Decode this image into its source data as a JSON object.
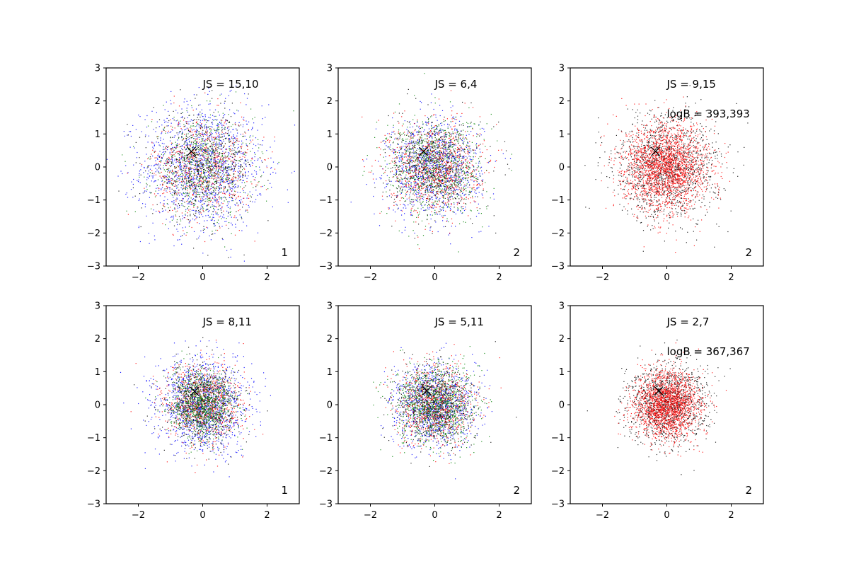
{
  "chart_data": [
    {
      "type": "scatter",
      "row": 1,
      "col": 1,
      "xlim": [
        -3,
        3
      ],
      "ylim": [
        -3,
        3
      ],
      "xticks": [
        -2,
        0,
        2
      ],
      "yticks": [
        -3,
        -2,
        -1,
        0,
        1,
        2,
        3
      ],
      "annotations": [
        "JS = 15,10"
      ],
      "corner_label": "1",
      "marker_x": {
        "x": -0.35,
        "y": 0.47
      },
      "series": [
        {
          "color": "#0000ff",
          "spread": 0.95,
          "points": 1400
        },
        {
          "color": "#ff0000",
          "spread": 0.78,
          "points": 700
        },
        {
          "color": "#008000",
          "spread": 0.78,
          "points": 700
        },
        {
          "color": "#000000",
          "spread": 0.78,
          "points": 600
        }
      ]
    },
    {
      "type": "scatter",
      "row": 1,
      "col": 2,
      "xlim": [
        -3,
        3
      ],
      "ylim": [
        -3,
        3
      ],
      "xticks": [
        -2,
        0,
        2
      ],
      "yticks": [
        -3,
        -2,
        -1,
        0,
        1,
        2,
        3
      ],
      "annotations": [
        "JS = 6,4"
      ],
      "corner_label": "2",
      "marker_x": {
        "x": -0.35,
        "y": 0.47
      },
      "series": [
        {
          "color": "#0000ff",
          "spread": 0.72,
          "points": 1100
        },
        {
          "color": "#ff0000",
          "spread": 0.7,
          "points": 900
        },
        {
          "color": "#008000",
          "spread": 0.75,
          "points": 900
        },
        {
          "color": "#000000",
          "spread": 0.7,
          "points": 600
        }
      ]
    },
    {
      "type": "scatter",
      "row": 1,
      "col": 3,
      "xlim": [
        -3,
        3
      ],
      "ylim": [
        -3,
        3
      ],
      "xticks": [
        -2,
        0,
        2
      ],
      "yticks": [
        -3,
        -2,
        -1,
        0,
        1,
        2,
        3
      ],
      "annotations": [
        "JS = 9,15",
        "logB = 393,393"
      ],
      "corner_label": "2",
      "marker_x": {
        "x": -0.35,
        "y": 0.47
      },
      "series": [
        {
          "color": "#000000",
          "spread": 0.78,
          "points": 1400
        },
        {
          "color": "#ff0000",
          "spread": 0.65,
          "points": 2200
        }
      ]
    },
    {
      "type": "scatter",
      "row": 2,
      "col": 1,
      "xlim": [
        -3,
        3
      ],
      "ylim": [
        -3,
        3
      ],
      "xticks": [
        -2,
        0,
        2
      ],
      "yticks": [
        -3,
        -2,
        -1,
        0,
        1,
        2,
        3
      ],
      "annotations": [
        "JS = 8,11"
      ],
      "corner_label": "1",
      "marker_x": {
        "x": -0.25,
        "y": 0.4
      },
      "series": [
        {
          "color": "#0000ff",
          "spread": 0.7,
          "points": 1300
        },
        {
          "color": "#ff0000",
          "spread": 0.6,
          "points": 800
        },
        {
          "color": "#000000",
          "spread": 0.6,
          "points": 700
        },
        {
          "color": "#008000",
          "spread": 0.5,
          "points": 900
        }
      ]
    },
    {
      "type": "scatter",
      "row": 2,
      "col": 2,
      "xlim": [
        -3,
        3
      ],
      "ylim": [
        -3,
        3
      ],
      "xticks": [
        -2,
        0,
        2
      ],
      "yticks": [
        -3,
        -2,
        -1,
        0,
        1,
        2,
        3
      ],
      "annotations": [
        "JS = 5,11"
      ],
      "corner_label": "2",
      "marker_x": {
        "x": -0.25,
        "y": 0.42
      },
      "series": [
        {
          "color": "#0000ff",
          "spread": 0.62,
          "points": 1100
        },
        {
          "color": "#ff0000",
          "spread": 0.6,
          "points": 800
        },
        {
          "color": "#000000",
          "spread": 0.6,
          "points": 700
        },
        {
          "color": "#008000",
          "spread": 0.62,
          "points": 1000
        }
      ]
    },
    {
      "type": "scatter",
      "row": 2,
      "col": 3,
      "xlim": [
        -3,
        3
      ],
      "ylim": [
        -3,
        3
      ],
      "xticks": [
        -2,
        0,
        2
      ],
      "yticks": [
        -3,
        -2,
        -1,
        0,
        1,
        2,
        3
      ],
      "annotations": [
        "JS = 2,7",
        "logB = 367,367"
      ],
      "corner_label": "2",
      "marker_x": {
        "x": -0.25,
        "y": 0.42
      },
      "series": [
        {
          "color": "#000000",
          "spread": 0.6,
          "points": 1300
        },
        {
          "color": "#ff0000",
          "spread": 0.5,
          "points": 2000
        }
      ]
    }
  ]
}
